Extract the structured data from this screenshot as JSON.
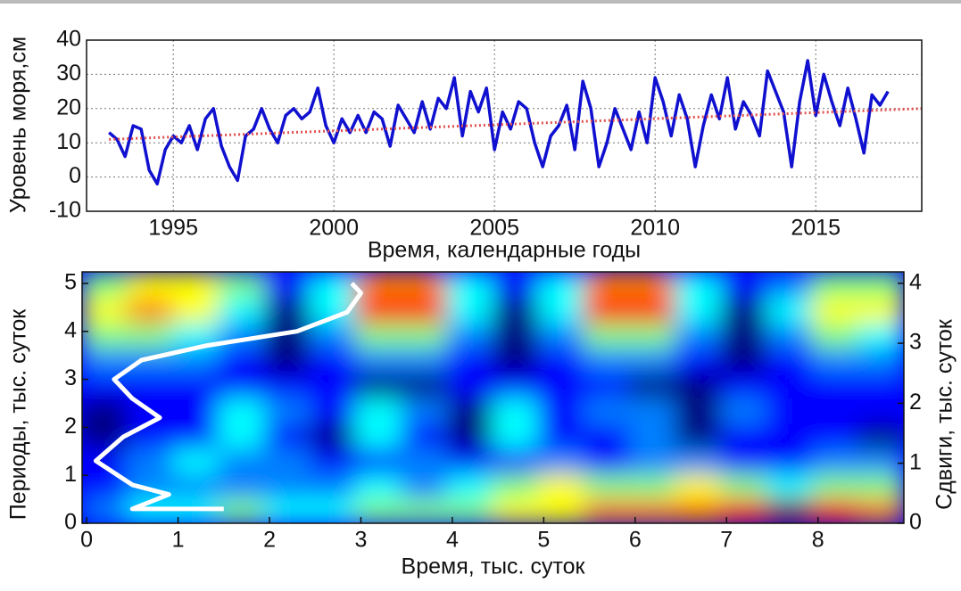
{
  "chart_data": [
    {
      "type": "line",
      "y_label": "Уровень моря,см",
      "x_label": "Время,  календарные годы",
      "xlim": [
        1992.3,
        2018.3
      ],
      "xticks": [
        1995,
        2000,
        2005,
        2010,
        2015
      ],
      "ylim": [
        -10,
        40
      ],
      "yticks": [
        -10,
        0,
        10,
        20,
        30,
        40
      ],
      "grid": true,
      "series": [
        {
          "color": "#1010d0",
          "width": 3.5,
          "dash": "none",
          "x": [
            1993,
            1993.25,
            1993.5,
            1993.75,
            1994,
            1994.25,
            1994.5,
            1994.75,
            1995,
            1995.25,
            1995.5,
            1995.75,
            1996,
            1996.25,
            1996.5,
            1996.75,
            1997,
            1997.25,
            1997.5,
            1997.75,
            1998,
            1998.25,
            1998.5,
            1998.75,
            1999,
            1999.25,
            1999.5,
            1999.75,
            2000,
            2000.25,
            2000.5,
            2000.75,
            2001,
            2001.25,
            2001.5,
            2001.75,
            2002,
            2002.25,
            2002.5,
            2002.75,
            2003,
            2003.25,
            2003.5,
            2003.75,
            2004,
            2004.25,
            2004.5,
            2004.75,
            2005,
            2005.25,
            2005.5,
            2005.75,
            2006,
            2006.25,
            2006.5,
            2006.75,
            2007,
            2007.25,
            2007.5,
            2007.75,
            2008,
            2008.25,
            2008.5,
            2008.75,
            2009,
            2009.25,
            2009.5,
            2009.75,
            2010,
            2010.25,
            2010.5,
            2010.75,
            2011,
            2011.25,
            2011.5,
            2011.75,
            2012,
            2012.25,
            2012.5,
            2012.75,
            2013,
            2013.25,
            2013.5,
            2013.75,
            2014,
            2014.25,
            2014.5,
            2014.75,
            2015,
            2015.25,
            2015.5,
            2015.75,
            2016,
            2016.25,
            2016.5,
            2016.75,
            2017,
            2017.25
          ],
          "values": [
            13,
            11,
            6,
            15,
            14,
            2,
            -2,
            8,
            12,
            10,
            15,
            8,
            17,
            20,
            9,
            3,
            -1,
            12,
            14,
            20,
            14,
            10,
            18,
            20,
            17,
            19,
            26,
            15,
            10,
            17,
            13,
            18,
            13,
            19,
            17,
            9,
            21,
            17,
            13,
            22,
            14,
            23,
            20,
            29,
            12,
            25,
            19,
            26,
            8,
            19,
            14,
            22,
            20,
            10,
            3,
            12,
            15,
            21,
            8,
            28,
            20,
            3,
            10,
            20,
            14,
            8,
            19,
            10,
            29,
            22,
            12,
            24,
            17,
            3,
            15,
            24,
            17,
            29,
            14,
            22,
            18,
            12,
            31,
            25,
            19,
            3,
            22,
            34,
            18,
            30,
            22,
            15,
            26,
            17,
            7,
            24,
            21,
            25
          ]
        },
        {
          "color": "#e05050",
          "width": 3,
          "dash": "2 3",
          "x": [
            1993,
            2018.3
          ],
          "values": [
            11,
            20
          ]
        }
      ]
    },
    {
      "type": "heatmap",
      "y_label": "Периоды, тыс. суток",
      "y2_label": "Сдвиги, тыс. суток",
      "x_label": "Время, тыс. суток",
      "xlim": [
        -0.05,
        8.94
      ],
      "xticks": [
        0,
        1,
        2,
        3,
        4,
        5,
        6,
        7,
        8
      ],
      "ylim": [
        0,
        5.24
      ],
      "yticks": [
        0,
        1,
        2,
        3,
        4,
        5
      ],
      "y2lim": [
        0,
        4.19
      ],
      "y2ticks": [
        0,
        1,
        2,
        3,
        4
      ],
      "grid": false,
      "colormap": "jet",
      "z": [
        [
          3,
          4,
          4,
          5,
          4,
          4,
          5,
          5,
          5,
          6,
          6,
          7,
          7,
          7,
          8,
          9,
          8,
          7
        ],
        [
          2,
          3,
          3,
          3,
          3,
          3,
          4,
          3,
          4,
          5,
          6,
          5,
          5,
          6,
          5,
          4,
          5,
          5
        ],
        [
          2,
          3,
          4,
          3,
          3,
          2,
          2,
          3,
          2,
          2,
          3,
          2,
          3,
          3,
          2,
          2,
          3,
          3
        ],
        [
          1,
          2,
          2,
          4,
          2,
          1,
          4,
          2,
          1,
          4,
          2,
          2,
          3,
          1,
          2,
          2,
          2,
          1
        ],
        [
          1,
          2,
          2,
          4,
          3,
          2,
          4,
          3,
          1,
          4,
          2,
          3,
          3,
          1,
          3,
          2,
          2,
          2
        ],
        [
          2,
          2,
          2,
          2,
          2,
          2,
          1,
          1,
          2,
          2,
          2,
          2,
          1,
          1,
          2,
          2,
          2,
          2
        ],
        [
          3,
          3,
          3,
          2,
          1,
          2,
          3,
          3,
          2,
          1,
          2,
          3,
          3,
          2,
          1,
          2,
          3,
          3
        ],
        [
          5,
          5,
          4,
          3,
          1,
          3,
          5,
          5,
          3,
          1,
          3,
          5,
          5,
          3,
          1,
          3,
          5,
          4
        ],
        [
          6,
          7,
          6,
          4,
          1,
          4,
          8,
          8,
          4,
          1,
          4,
          8,
          8,
          4,
          1,
          4,
          6,
          6
        ],
        [
          5,
          6,
          6,
          5,
          2,
          4,
          7,
          7,
          4,
          2,
          4,
          7,
          7,
          4,
          2,
          3,
          5,
          5
        ]
      ],
      "series": [
        {
          "color": "#ffffff",
          "width": 5,
          "dash": "none",
          "x": [
            1.5,
            0.5,
            0.9,
            0.5,
            0.1,
            0.4,
            0.8,
            0.5,
            0.3,
            0.6,
            1.3,
            2.3,
            2.85,
            3.0,
            2.9
          ],
          "values": [
            0.3,
            0.3,
            0.6,
            0.8,
            1.3,
            1.8,
            2.2,
            2.6,
            3.0,
            3.4,
            3.7,
            4.0,
            4.4,
            4.8,
            5.0
          ]
        }
      ]
    }
  ]
}
